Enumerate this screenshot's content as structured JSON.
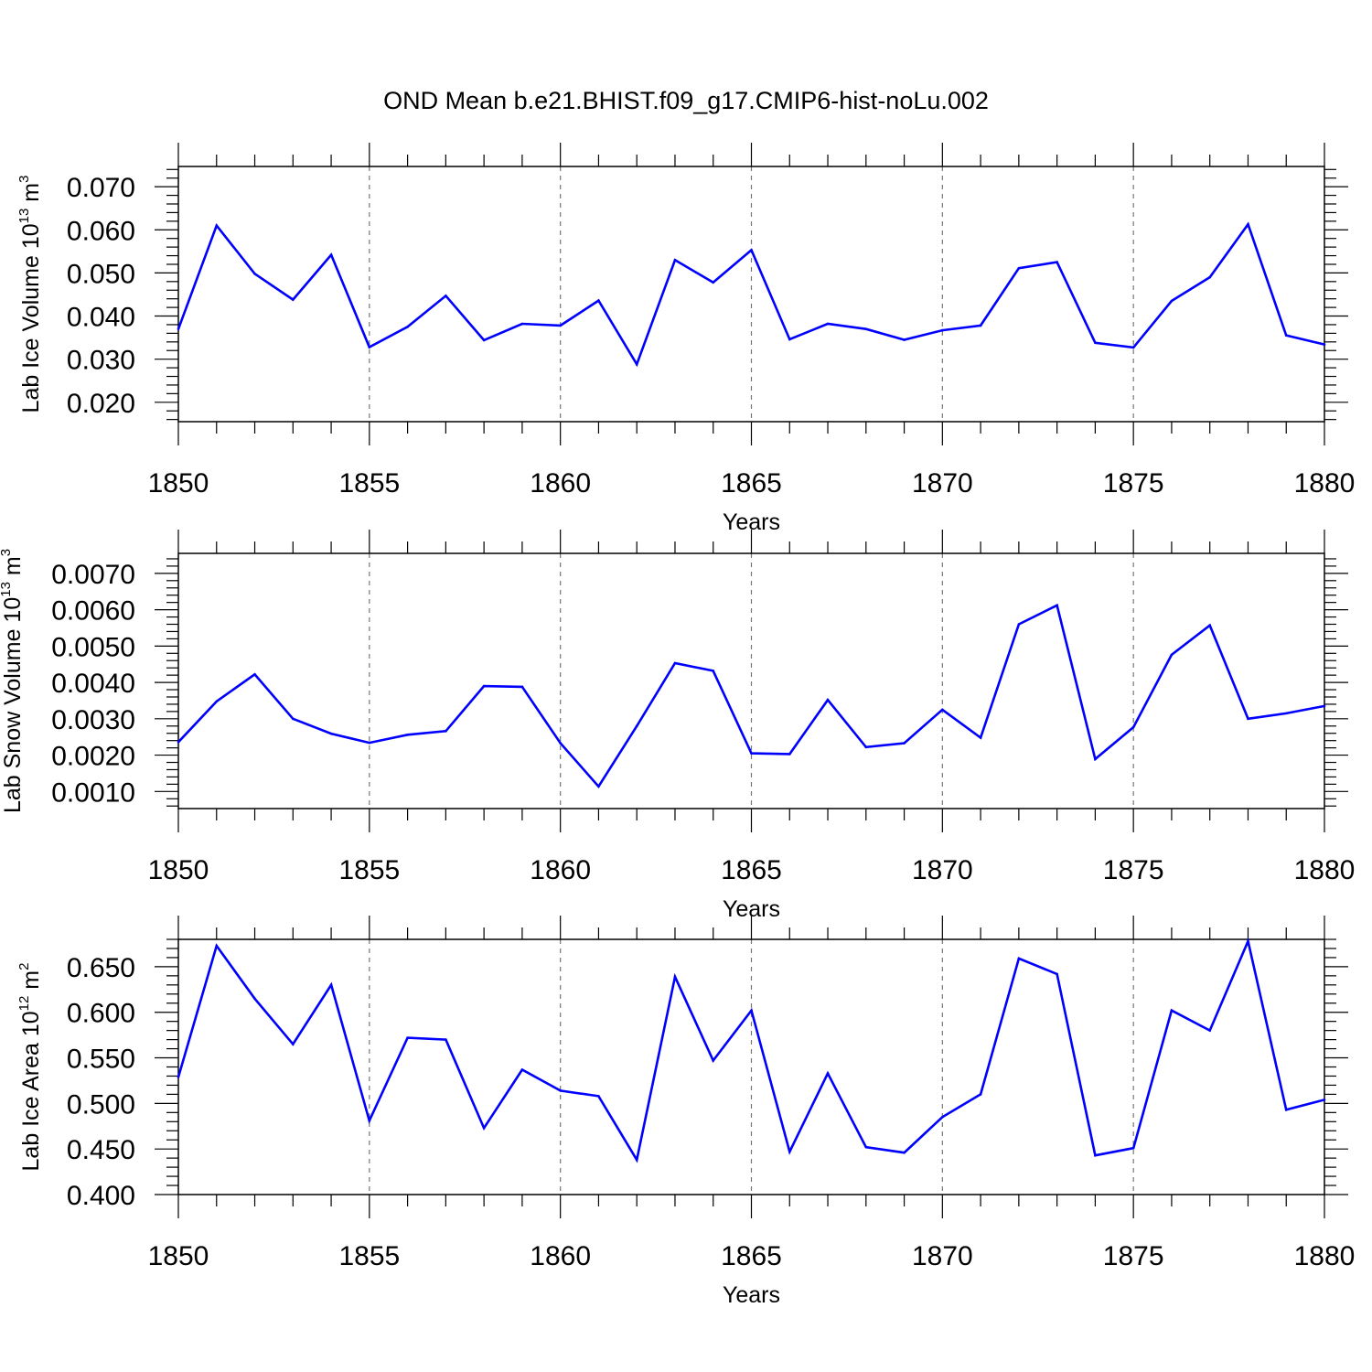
{
  "chart_data": {
    "title": "OND Mean b.e21.BHIST.f09_g17.CMIP6-hist-noLu.002",
    "panels": [
      {
        "type": "line",
        "ylabel": {
          "text": "Lab Ice Volume 10",
          "exp": "13",
          "unit": " m",
          "unit_exp": "3"
        },
        "xlabel": "Years",
        "xlim": [
          1850,
          1880
        ],
        "ylim": [
          0.0155,
          0.0747
        ],
        "yticks": [
          0.02,
          0.03,
          0.04,
          0.05,
          0.06,
          0.07
        ],
        "ytick_labels": [
          "0.020",
          "0.030",
          "0.040",
          "0.050",
          "0.060",
          "0.070"
        ],
        "color": "#0000ff",
        "x": [
          1850,
          1851,
          1852,
          1853,
          1854,
          1855,
          1856,
          1857,
          1858,
          1859,
          1860,
          1861,
          1862,
          1863,
          1864,
          1865,
          1866,
          1867,
          1868,
          1869,
          1870,
          1871,
          1872,
          1873,
          1874,
          1875,
          1876,
          1877,
          1878,
          1879,
          1880
        ],
        "values": [
          0.037,
          0.061,
          0.0498,
          0.0438,
          0.0542,
          0.0328,
          0.0375,
          0.0447,
          0.0344,
          0.0382,
          0.0378,
          0.0436,
          0.0288,
          0.053,
          0.0478,
          0.0553,
          0.0346,
          0.0382,
          0.037,
          0.0345,
          0.0367,
          0.0378,
          0.0511,
          0.0525,
          0.0338,
          0.0327,
          0.0435,
          0.049,
          0.0613,
          0.0355,
          0.0334
        ]
      },
      {
        "type": "line",
        "ylabel": {
          "text": "Lab Snow Volume 10",
          "exp": "13",
          "unit": " m",
          "unit_exp": "3"
        },
        "xlabel": "Years",
        "xlim": [
          1850,
          1880
        ],
        "ylim": [
          0.00053,
          0.00755
        ],
        "yticks": [
          0.001,
          0.002,
          0.003,
          0.004,
          0.005,
          0.006,
          0.007
        ],
        "ytick_labels": [
          "0.0010",
          "0.0020",
          "0.0030",
          "0.0040",
          "0.0050",
          "0.0060",
          "0.0070"
        ],
        "color": "#0000ff",
        "x": [
          1850,
          1851,
          1852,
          1853,
          1854,
          1855,
          1856,
          1857,
          1858,
          1859,
          1860,
          1861,
          1862,
          1863,
          1864,
          1865,
          1866,
          1867,
          1868,
          1869,
          1870,
          1871,
          1872,
          1873,
          1874,
          1875,
          1876,
          1877,
          1878,
          1879,
          1880
        ],
        "values": [
          0.00236,
          0.00348,
          0.00422,
          0.003,
          0.00259,
          0.00234,
          0.00256,
          0.00266,
          0.0039,
          0.00388,
          0.00233,
          0.00114,
          0.0028,
          0.00453,
          0.00432,
          0.00205,
          0.00203,
          0.00352,
          0.00222,
          0.00233,
          0.00325,
          0.00248,
          0.0056,
          0.00612,
          0.00189,
          0.00277,
          0.00476,
          0.00557,
          0.003,
          0.00315,
          0.00335
        ]
      },
      {
        "type": "line",
        "ylabel": {
          "text": "Lab Ice Area 10",
          "exp": "12",
          "unit": " m",
          "unit_exp": "2"
        },
        "xlabel": "Years",
        "xlim": [
          1850,
          1880
        ],
        "ylim": [
          0.4,
          0.68
        ],
        "yticks": [
          0.4,
          0.45,
          0.5,
          0.55,
          0.6,
          0.65
        ],
        "ytick_labels": [
          "0.400",
          "0.450",
          "0.500",
          "0.550",
          "0.600",
          "0.650"
        ],
        "color": "#0000ff",
        "x": [
          1850,
          1851,
          1852,
          1853,
          1854,
          1855,
          1856,
          1857,
          1858,
          1859,
          1860,
          1861,
          1862,
          1863,
          1864,
          1865,
          1866,
          1867,
          1868,
          1869,
          1870,
          1871,
          1872,
          1873,
          1874,
          1875,
          1876,
          1877,
          1878,
          1879,
          1880
        ],
        "values": [
          0.529,
          0.673,
          0.615,
          0.565,
          0.63,
          0.481,
          0.572,
          0.57,
          0.473,
          0.537,
          0.514,
          0.508,
          0.438,
          0.639,
          0.547,
          0.602,
          0.447,
          0.533,
          0.452,
          0.446,
          0.485,
          0.51,
          0.659,
          0.642,
          0.443,
          0.451,
          0.602,
          0.58,
          0.678,
          0.493,
          0.504
        ]
      }
    ],
    "xticks": [
      1850,
      1855,
      1860,
      1865,
      1870,
      1875,
      1880
    ],
    "xtick_labels": [
      "1850",
      "1855",
      "1860",
      "1865",
      "1870",
      "1875",
      "1880"
    ],
    "grid": "vertical dashed at major x ticks"
  }
}
